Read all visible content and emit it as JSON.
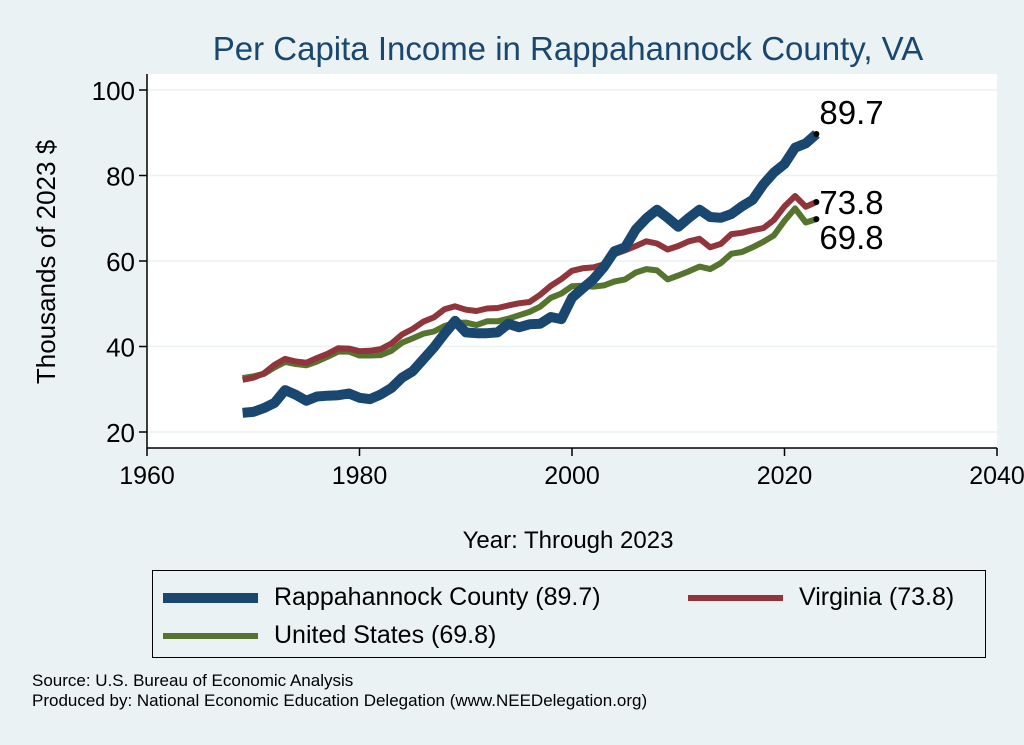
{
  "chart_data": {
    "type": "line",
    "title": "Per Capita Income in Rappahannock County, VA",
    "xlabel": "Year: Through 2023",
    "ylabel": "Thousands of 2023 $",
    "xlim": [
      1960,
      2040
    ],
    "ylim": [
      20,
      100
    ],
    "xticks": [
      1960,
      1980,
      2000,
      2020,
      2040
    ],
    "yticks": [
      20,
      40,
      60,
      80,
      100
    ],
    "grid": true,
    "legend_position": "bottom",
    "x": [
      1969,
      1970,
      1971,
      1972,
      1973,
      1974,
      1975,
      1976,
      1977,
      1978,
      1979,
      1980,
      1981,
      1982,
      1983,
      1984,
      1985,
      1986,
      1987,
      1988,
      1989,
      1990,
      1991,
      1992,
      1993,
      1994,
      1995,
      1996,
      1997,
      1998,
      1999,
      2000,
      2001,
      2002,
      2003,
      2004,
      2005,
      2006,
      2007,
      2008,
      2009,
      2010,
      2011,
      2012,
      2013,
      2014,
      2015,
      2016,
      2017,
      2018,
      2019,
      2020,
      2021,
      2022,
      2023
    ],
    "series": [
      {
        "name": "Rappahannock County (89.7)",
        "color": "#1a476f",
        "end_label": "89.7",
        "values": [
          24.5,
          24.7,
          25.6,
          26.8,
          29.8,
          28.7,
          27.3,
          28.3,
          28.5,
          28.6,
          29.0,
          28.0,
          27.7,
          28.8,
          30.3,
          32.7,
          34.2,
          37.0,
          39.8,
          43.0,
          46.0,
          43.3,
          43.1,
          43.1,
          43.3,
          45.3,
          44.5,
          45.2,
          45.3,
          46.9,
          46.4,
          51.4,
          53.6,
          55.7,
          58.6,
          62.3,
          63.2,
          67.4,
          70.0,
          72.0,
          70.1,
          68.0,
          70.1,
          72.0,
          70.3,
          70.1,
          71.0,
          72.8,
          74.3,
          77.9,
          80.7,
          82.7,
          86.5,
          87.5,
          89.7
        ]
      },
      {
        "name": "Virginia (73.8)",
        "color": "#90353b",
        "end_label": "73.8",
        "values": [
          32.2,
          32.7,
          33.7,
          35.7,
          37.1,
          36.5,
          36.2,
          37.3,
          38.3,
          39.6,
          39.5,
          38.9,
          39.0,
          39.4,
          40.7,
          42.8,
          44.1,
          45.8,
          46.8,
          48.7,
          49.4,
          48.6,
          48.3,
          48.9,
          49.0,
          49.6,
          50.1,
          50.4,
          52.1,
          54.2,
          55.8,
          57.7,
          58.3,
          58.5,
          59.2,
          61.6,
          62.5,
          63.5,
          64.6,
          64.1,
          62.7,
          63.5,
          64.6,
          65.2,
          63.2,
          64.0,
          66.3,
          66.6,
          67.2,
          67.7,
          69.6,
          72.8,
          75.2,
          72.7,
          73.8
        ]
      },
      {
        "name": "United States (69.8)",
        "color": "#55752f",
        "end_label": "69.8",
        "values": [
          32.6,
          33.0,
          33.6,
          35.1,
          36.4,
          35.9,
          35.6,
          36.5,
          37.6,
          38.8,
          38.8,
          37.9,
          37.9,
          38.0,
          39.0,
          40.9,
          41.9,
          43.0,
          43.5,
          44.8,
          45.5,
          45.6,
          45.0,
          45.9,
          45.9,
          46.5,
          47.3,
          48.1,
          49.3,
          51.4,
          52.4,
          54.1,
          54.2,
          54.0,
          54.3,
          55.2,
          55.7,
          57.3,
          58.1,
          57.8,
          55.7,
          56.6,
          57.6,
          58.7,
          58.1,
          59.5,
          61.7,
          62.1,
          63.2,
          64.5,
          66.0,
          69.4,
          72.3,
          69.0,
          69.8
        ]
      }
    ]
  },
  "legend": {
    "items": [
      {
        "label": "Rappahannock County (89.7)",
        "color": "#1a476f"
      },
      {
        "label": "Virginia (73.8)",
        "color": "#90353b"
      },
      {
        "label": "United States (69.8)",
        "color": "#55752f"
      }
    ]
  },
  "footer": {
    "source": "Source: U.S. Bureau of Economic Analysis",
    "produced": "Produced by: National Economic Education Delegation (www.NEEDelegation.org)"
  }
}
